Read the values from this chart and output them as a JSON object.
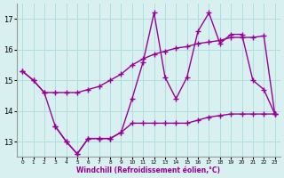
{
  "line1_x": [
    0,
    1,
    2,
    3,
    4,
    5,
    6,
    7,
    8,
    9,
    10,
    11,
    12,
    13,
    14,
    15,
    16,
    17,
    18,
    19,
    20,
    21,
    22,
    23
  ],
  "line1_y": [
    15.3,
    15.0,
    14.6,
    14.6,
    14.6,
    14.6,
    14.7,
    14.8,
    15.0,
    15.2,
    15.5,
    15.7,
    15.85,
    15.95,
    16.05,
    16.1,
    16.2,
    16.25,
    16.3,
    16.4,
    16.4,
    16.4,
    16.45,
    13.9
  ],
  "line2_x": [
    0,
    1,
    2,
    3,
    4,
    5,
    6,
    7,
    8,
    9,
    10,
    11,
    12,
    13,
    14,
    15,
    16,
    17,
    18,
    19,
    20,
    21,
    22,
    23
  ],
  "line2_y": [
    15.3,
    15.0,
    14.6,
    13.5,
    13.0,
    12.6,
    13.1,
    13.1,
    13.1,
    13.3,
    14.4,
    15.6,
    17.2,
    15.1,
    14.4,
    15.1,
    16.6,
    17.2,
    16.2,
    16.5,
    16.5,
    15.0,
    14.7,
    13.9
  ],
  "line3_x": [
    3,
    4,
    5,
    6,
    7,
    8,
    9,
    10,
    11,
    12,
    13,
    14,
    15,
    16,
    17,
    18,
    19,
    20,
    21,
    22,
    23
  ],
  "line3_y": [
    13.5,
    13.0,
    12.6,
    13.1,
    13.1,
    13.1,
    13.3,
    13.6,
    13.6,
    13.6,
    13.6,
    13.6,
    13.6,
    13.7,
    13.8,
    13.85,
    13.9,
    13.9,
    13.9,
    13.9,
    13.9
  ],
  "line_color": "#990099",
  "bg_color": "#d8f0f0",
  "grid_color": "#b0dede",
  "xlabel": "Windchill (Refroidissement éolien,°C)",
  "ylim": [
    12.5,
    17.5
  ],
  "xlim": [
    -0.5,
    23.5
  ],
  "yticks": [
    13,
    14,
    15,
    16,
    17
  ],
  "xticks": [
    0,
    1,
    2,
    3,
    4,
    5,
    6,
    7,
    8,
    9,
    10,
    11,
    12,
    13,
    14,
    15,
    16,
    17,
    18,
    19,
    20,
    21,
    22,
    23
  ],
  "marker": "+",
  "markersize": 4,
  "linewidth": 1.0
}
